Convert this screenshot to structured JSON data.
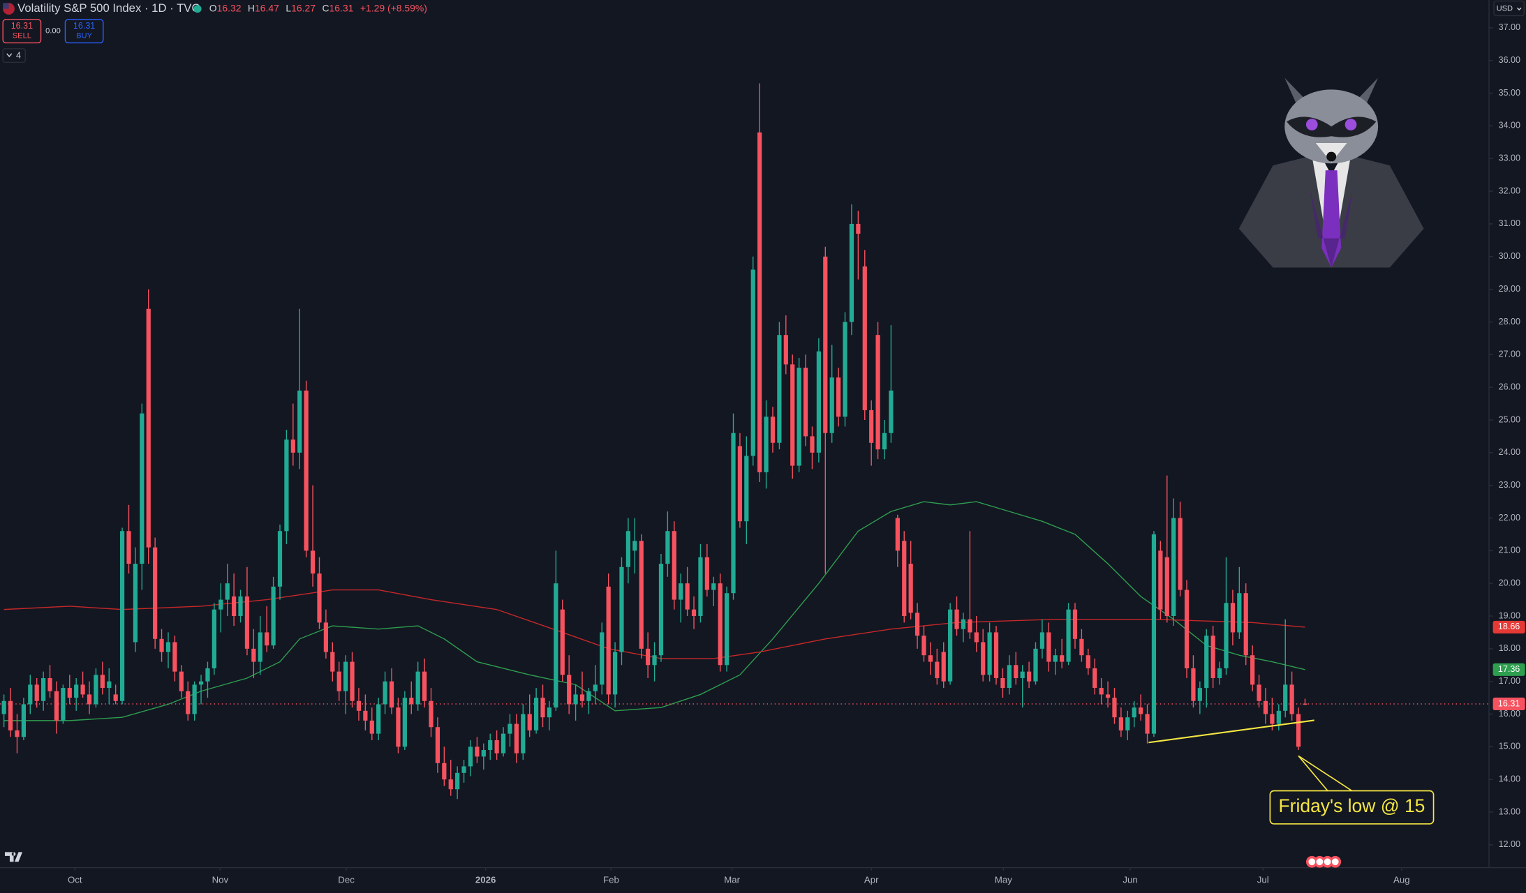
{
  "chart_data": {
    "type": "candlestick",
    "title": "Volatility S&P 500 Index · 1D · TVC",
    "header_ohlc": [
      {
        "key": "O",
        "value": 16.32
      },
      {
        "key": "H",
        "value": 16.47
      },
      {
        "key": "L",
        "value": 16.27
      },
      {
        "key": "C",
        "value": 16.31
      }
    ],
    "change": "+1.29 (+8.59%)",
    "sell": {
      "price": 16.31,
      "label": "SELL"
    },
    "spread": "0.00",
    "buy": {
      "price": 16.31,
      "label": "BUY"
    },
    "indicator_count": 4,
    "currency": "USD",
    "up_color": "#22ab94",
    "down_color": "#f7525f",
    "xlim": [
      -0.6,
      226
    ],
    "ylim": [
      11.3,
      37.85
    ],
    "grid": false,
    "xticks": [
      {
        "value": 10.8,
        "label": "Oct"
      },
      {
        "value": 32.9,
        "label": "Nov"
      },
      {
        "value": 52.1,
        "label": "Dec"
      },
      {
        "value": 73.3,
        "label": "2026"
      },
      {
        "value": 92.4,
        "label": "Feb"
      },
      {
        "value": 110.8,
        "label": "Mar"
      },
      {
        "value": 132,
        "label": "Apr"
      },
      {
        "value": 152.1,
        "label": "May"
      },
      {
        "value": 171.4,
        "label": "Jun"
      },
      {
        "value": 191.6,
        "label": "Jul"
      },
      {
        "value": 212.7,
        "label": "Aug"
      }
    ],
    "yticks": [
      {
        "value": 12,
        "label": "12.00"
      },
      {
        "value": 13,
        "label": "13.00"
      },
      {
        "value": 14,
        "label": "14.00"
      },
      {
        "value": 15,
        "label": "15.00"
      },
      {
        "value": 16,
        "label": "16.00"
      },
      {
        "value": 17,
        "label": "17.00"
      },
      {
        "value": 18,
        "label": "18.00"
      },
      {
        "value": 19,
        "label": "19.00"
      },
      {
        "value": 20,
        "label": "20.00"
      },
      {
        "value": 21,
        "label": "21.00"
      },
      {
        "value": 22,
        "label": "22.00"
      },
      {
        "value": 23,
        "label": "23.00"
      },
      {
        "value": 24,
        "label": "24.00"
      },
      {
        "value": 25,
        "label": "25.00"
      },
      {
        "value": 26,
        "label": "26.00"
      },
      {
        "value": 27,
        "label": "27.00"
      },
      {
        "value": 28,
        "label": "28.00"
      },
      {
        "value": 29,
        "label": "29.00"
      },
      {
        "value": 30,
        "label": "30.00"
      },
      {
        "value": 31,
        "label": "31.00"
      },
      {
        "value": 32,
        "label": "32.00"
      },
      {
        "value": 33,
        "label": "33.00"
      },
      {
        "value": 34,
        "label": "34.00"
      },
      {
        "value": 35,
        "label": "35.00"
      },
      {
        "value": 36,
        "label": "36.00"
      },
      {
        "value": 37,
        "label": "37.00"
      }
    ],
    "ohlc": [
      [
        16.0,
        16.6,
        15.6,
        16.4
      ],
      [
        16.4,
        16.8,
        15.3,
        15.5
      ],
      [
        15.5,
        16.0,
        14.8,
        15.3
      ],
      [
        15.3,
        16.5,
        15.2,
        16.3
      ],
      [
        16.3,
        17.2,
        16.0,
        16.9
      ],
      [
        16.9,
        17.1,
        16.2,
        16.4
      ],
      [
        16.4,
        17.3,
        16.1,
        17.1
      ],
      [
        17.1,
        17.5,
        16.5,
        16.7
      ],
      [
        16.7,
        17.0,
        15.4,
        15.8
      ],
      [
        15.8,
        16.9,
        15.7,
        16.8
      ],
      [
        16.8,
        17.2,
        16.3,
        16.5
      ],
      [
        16.5,
        17.1,
        16.1,
        16.9
      ],
      [
        16.9,
        17.3,
        16.5,
        16.6
      ],
      [
        16.6,
        17.0,
        16.0,
        16.3
      ],
      [
        16.3,
        17.4,
        16.2,
        17.2
      ],
      [
        17.2,
        17.6,
        16.6,
        16.8
      ],
      [
        16.8,
        17.4,
        16.3,
        17.0
      ],
      [
        16.6,
        16.9,
        16.3,
        16.4
      ],
      [
        16.4,
        21.7,
        16.3,
        21.6
      ],
      [
        21.6,
        22.4,
        20.3,
        20.6
      ],
      [
        18.2,
        21.1,
        17.9,
        20.6
      ],
      [
        20.6,
        25.5,
        19.8,
        25.2
      ],
      [
        28.4,
        29.0,
        20.6,
        21.1
      ],
      [
        21.1,
        21.4,
        18.0,
        18.3
      ],
      [
        18.3,
        18.6,
        17.6,
        17.9
      ],
      [
        17.9,
        18.5,
        17.4,
        18.2
      ],
      [
        18.2,
        18.4,
        17.0,
        17.3
      ],
      [
        17.3,
        17.5,
        16.5,
        16.7
      ],
      [
        16.7,
        17.0,
        15.8,
        16.0
      ],
      [
        16.0,
        17.0,
        15.8,
        16.9
      ],
      [
        16.9,
        17.2,
        16.3,
        17.0
      ],
      [
        17.0,
        17.6,
        16.5,
        17.4
      ],
      [
        17.4,
        19.4,
        17.2,
        19.2
      ],
      [
        19.2,
        20.0,
        18.5,
        19.5
      ],
      [
        19.5,
        20.6,
        19.0,
        20.0
      ],
      [
        19.6,
        20.3,
        18.7,
        19.0
      ],
      [
        19.0,
        19.8,
        18.8,
        19.6
      ],
      [
        19.6,
        20.5,
        17.8,
        18.0
      ],
      [
        18.0,
        18.6,
        17.1,
        17.6
      ],
      [
        17.6,
        19.0,
        17.2,
        18.5
      ],
      [
        18.5,
        19.3,
        17.9,
        18.1
      ],
      [
        18.1,
        20.2,
        18.0,
        19.9
      ],
      [
        19.9,
        21.8,
        19.5,
        21.6
      ],
      [
        21.6,
        24.7,
        21.2,
        24.4
      ],
      [
        24.4,
        25.5,
        23.6,
        24.0
      ],
      [
        24.0,
        28.4,
        23.5,
        25.9
      ],
      [
        25.9,
        26.2,
        20.8,
        21.0
      ],
      [
        21.0,
        23.0,
        19.9,
        20.3
      ],
      [
        20.3,
        20.8,
        18.6,
        18.8
      ],
      [
        18.8,
        19.2,
        17.7,
        17.9
      ],
      [
        17.9,
        18.2,
        17.0,
        17.3
      ],
      [
        17.3,
        17.6,
        16.4,
        16.7
      ],
      [
        16.7,
        17.8,
        16.0,
        17.6
      ],
      [
        17.6,
        17.9,
        16.2,
        16.4
      ],
      [
        16.4,
        16.8,
        15.8,
        16.1
      ],
      [
        16.1,
        16.6,
        15.5,
        15.8
      ],
      [
        15.8,
        16.2,
        15.2,
        15.4
      ],
      [
        15.4,
        16.5,
        15.2,
        16.3
      ],
      [
        16.3,
        17.3,
        16.0,
        17.0
      ],
      [
        17.0,
        17.4,
        16.0,
        16.2
      ],
      [
        16.2,
        16.5,
        14.8,
        15.0
      ],
      [
        15.0,
        16.7,
        14.9,
        16.5
      ],
      [
        16.5,
        17.0,
        16.0,
        16.3
      ],
      [
        16.3,
        17.6,
        16.1,
        17.3
      ],
      [
        17.3,
        17.7,
        16.2,
        16.4
      ],
      [
        16.4,
        16.8,
        15.3,
        15.6
      ],
      [
        15.6,
        15.9,
        14.2,
        14.5
      ],
      [
        14.5,
        15.0,
        13.8,
        14.0
      ],
      [
        14.0,
        14.6,
        13.5,
        13.7
      ],
      [
        13.7,
        14.4,
        13.4,
        14.2
      ],
      [
        14.2,
        14.6,
        13.9,
        14.4
      ],
      [
        14.4,
        15.2,
        14.1,
        15.0
      ],
      [
        15.0,
        15.3,
        14.5,
        14.7
      ],
      [
        14.7,
        15.1,
        14.3,
        14.9
      ],
      [
        14.9,
        15.4,
        14.6,
        15.2
      ],
      [
        15.2,
        15.5,
        14.6,
        14.8
      ],
      [
        14.8,
        15.6,
        14.7,
        15.4
      ],
      [
        15.4,
        16.0,
        15.0,
        15.7
      ],
      [
        15.7,
        16.0,
        14.5,
        14.8
      ],
      [
        14.8,
        16.3,
        14.6,
        16.0
      ],
      [
        16.0,
        16.6,
        15.3,
        15.5
      ],
      [
        15.5,
        16.8,
        15.4,
        16.5
      ],
      [
        16.5,
        16.9,
        15.6,
        15.9
      ],
      [
        15.9,
        16.4,
        15.5,
        16.2
      ],
      [
        16.2,
        21.0,
        16.1,
        20.0
      ],
      [
        19.2,
        19.5,
        17.0,
        17.2
      ],
      [
        17.2,
        17.8,
        16.0,
        16.3
      ],
      [
        16.3,
        16.9,
        15.8,
        16.6
      ],
      [
        16.6,
        17.3,
        16.2,
        16.4
      ],
      [
        16.4,
        16.8,
        16.0,
        16.7
      ],
      [
        16.7,
        17.5,
        16.3,
        16.9
      ],
      [
        16.9,
        18.8,
        16.6,
        18.5
      ],
      [
        19.9,
        20.3,
        16.3,
        16.6
      ],
      [
        16.6,
        18.2,
        16.2,
        17.9
      ],
      [
        17.9,
        20.8,
        17.5,
        20.5
      ],
      [
        20.5,
        22.0,
        20.0,
        21.6
      ],
      [
        21.0,
        22.0,
        20.3,
        21.3
      ],
      [
        21.3,
        21.5,
        17.7,
        18.0
      ],
      [
        18.0,
        18.5,
        17.1,
        17.5
      ],
      [
        17.5,
        18.2,
        17.0,
        17.8
      ],
      [
        17.8,
        20.9,
        17.6,
        20.6
      ],
      [
        20.6,
        22.2,
        20.2,
        21.6
      ],
      [
        21.6,
        21.9,
        19.2,
        19.5
      ],
      [
        19.5,
        20.3,
        18.8,
        20.0
      ],
      [
        20.0,
        20.5,
        19.0,
        19.2
      ],
      [
        19.2,
        19.6,
        18.6,
        19.0
      ],
      [
        19.0,
        21.2,
        18.8,
        20.8
      ],
      [
        20.8,
        21.2,
        19.6,
        19.8
      ],
      [
        19.8,
        20.2,
        19.3,
        20.0
      ],
      [
        20.0,
        20.3,
        17.3,
        17.5
      ],
      [
        17.5,
        19.9,
        17.3,
        19.7
      ],
      [
        19.7,
        25.2,
        19.5,
        24.6
      ],
      [
        24.2,
        24.6,
        21.7,
        21.9
      ],
      [
        21.9,
        24.5,
        21.2,
        23.9
      ],
      [
        23.9,
        30.0,
        23.6,
        29.6
      ],
      [
        33.8,
        35.3,
        23.1,
        23.4
      ],
      [
        23.4,
        25.6,
        22.9,
        25.1
      ],
      [
        25.1,
        25.4,
        24.0,
        24.3
      ],
      [
        24.3,
        28.0,
        24.1,
        27.6
      ],
      [
        27.6,
        28.2,
        26.4,
        26.7
      ],
      [
        26.7,
        27.0,
        23.2,
        23.6
      ],
      [
        23.6,
        26.9,
        23.4,
        26.6
      ],
      [
        26.6,
        27.0,
        24.2,
        24.5
      ],
      [
        24.5,
        24.8,
        23.5,
        24.0
      ],
      [
        24.0,
        27.5,
        23.7,
        27.1
      ],
      [
        30.0,
        30.3,
        20.3,
        24.6
      ],
      [
        24.6,
        27.3,
        24.3,
        26.3
      ],
      [
        26.3,
        26.6,
        24.8,
        25.1
      ],
      [
        25.1,
        28.3,
        24.8,
        28.0
      ],
      [
        28.0,
        31.6,
        27.6,
        31.0
      ],
      [
        31.0,
        31.4,
        29.3,
        30.7
      ],
      [
        29.7,
        30.2,
        25.0,
        25.3
      ],
      [
        25.3,
        25.6,
        23.6,
        24.3
      ],
      [
        27.6,
        28.0,
        23.8,
        24.1
      ],
      [
        24.1,
        25.0,
        23.8,
        24.6
      ],
      [
        24.6,
        27.9,
        24.3,
        25.9
      ],
      [
        22.0,
        22.1,
        20.5,
        21.0
      ],
      [
        21.3,
        21.6,
        18.8,
        19.0
      ],
      [
        20.6,
        21.3,
        18.9,
        19.1
      ],
      [
        19.1,
        19.4,
        18.0,
        18.4
      ],
      [
        18.4,
        18.7,
        17.6,
        17.8
      ],
      [
        17.8,
        18.2,
        17.2,
        17.6
      ],
      [
        17.6,
        18.0,
        16.9,
        17.1
      ],
      [
        17.9,
        18.2,
        16.8,
        17.0
      ],
      [
        17.0,
        19.4,
        16.9,
        19.2
      ],
      [
        19.2,
        19.6,
        18.4,
        18.6
      ],
      [
        18.6,
        19.1,
        18.2,
        18.9
      ],
      [
        18.9,
        21.6,
        18.3,
        18.5
      ],
      [
        18.5,
        19.0,
        17.9,
        18.2
      ],
      [
        18.2,
        18.6,
        17.0,
        17.2
      ],
      [
        17.2,
        18.8,
        17.0,
        18.5
      ],
      [
        18.5,
        18.7,
        16.9,
        17.1
      ],
      [
        17.1,
        17.4,
        16.5,
        16.8
      ],
      [
        16.8,
        17.8,
        16.6,
        17.5
      ],
      [
        17.5,
        17.9,
        16.9,
        17.1
      ],
      [
        17.1,
        17.5,
        16.2,
        17.3
      ],
      [
        17.3,
        17.6,
        16.8,
        17.0
      ],
      [
        17.0,
        18.2,
        16.9,
        18.0
      ],
      [
        18.0,
        18.9,
        17.7,
        18.5
      ],
      [
        18.5,
        18.8,
        17.3,
        17.6
      ],
      [
        17.6,
        18.0,
        17.2,
        17.8
      ],
      [
        17.8,
        18.3,
        17.4,
        17.6
      ],
      [
        17.6,
        19.4,
        17.5,
        19.2
      ],
      [
        19.2,
        19.4,
        18.0,
        18.3
      ],
      [
        18.3,
        18.6,
        17.6,
        17.8
      ],
      [
        17.8,
        18.0,
        17.2,
        17.4
      ],
      [
        17.4,
        17.7,
        16.6,
        16.8
      ],
      [
        16.8,
        17.1,
        16.3,
        16.6
      ],
      [
        16.6,
        17.0,
        16.2,
        16.5
      ],
      [
        16.5,
        16.8,
        15.7,
        15.9
      ],
      [
        15.9,
        16.2,
        15.3,
        15.5
      ],
      [
        15.5,
        16.1,
        15.2,
        15.9
      ],
      [
        15.9,
        16.4,
        15.6,
        16.2
      ],
      [
        16.2,
        16.6,
        15.8,
        16.0
      ],
      [
        16.0,
        16.3,
        15.1,
        15.4
      ],
      [
        15.4,
        21.6,
        15.3,
        21.5
      ],
      [
        21.0,
        21.3,
        18.9,
        19.2
      ],
      [
        20.8,
        23.3,
        18.8,
        19.0
      ],
      [
        19.0,
        22.6,
        18.7,
        22.0
      ],
      [
        22.0,
        22.5,
        19.6,
        19.8
      ],
      [
        19.8,
        20.1,
        17.1,
        17.4
      ],
      [
        17.4,
        17.8,
        16.2,
        16.4
      ],
      [
        16.4,
        17.0,
        16.0,
        16.8
      ],
      [
        16.8,
        18.6,
        16.2,
        18.4
      ],
      [
        18.4,
        18.7,
        16.8,
        17.1
      ],
      [
        17.1,
        17.6,
        16.9,
        17.4
      ],
      [
        17.4,
        20.8,
        17.2,
        19.4
      ],
      [
        19.4,
        19.8,
        18.1,
        18.5
      ],
      [
        18.5,
        20.5,
        18.3,
        19.7
      ],
      [
        19.7,
        20.0,
        17.5,
        17.8
      ],
      [
        17.8,
        18.1,
        16.7,
        16.9
      ],
      [
        16.9,
        17.2,
        16.2,
        16.4
      ],
      [
        16.4,
        16.8,
        15.7,
        16.0
      ],
      [
        16.0,
        16.5,
        15.5,
        15.7
      ],
      [
        15.7,
        16.3,
        15.5,
        16.1
      ],
      [
        16.1,
        18.9,
        15.9,
        16.9
      ],
      [
        16.9,
        17.3,
        15.8,
        16.0
      ],
      [
        16.0,
        16.2,
        14.9,
        15.0
      ],
      [
        16.32,
        16.47,
        16.27,
        16.31
      ]
    ],
    "lines": [
      {
        "color": "#2e9e4f",
        "x": [
          0,
          10,
          18,
          25,
          30,
          37,
          42,
          45,
          50,
          57,
          63,
          67,
          72,
          80,
          87,
          93,
          100,
          106,
          112,
          117,
          124,
          130,
          135,
          140,
          144,
          148,
          153,
          158,
          163,
          168,
          173,
          178,
          183,
          188,
          193,
          198
        ],
        "values": [
          15.8,
          15.8,
          15.9,
          16.3,
          16.7,
          17.1,
          17.6,
          18.3,
          18.7,
          18.6,
          18.7,
          18.3,
          17.6,
          17.2,
          16.9,
          16.1,
          16.2,
          16.6,
          17.2,
          18.3,
          20.0,
          21.6,
          22.2,
          22.5,
          22.4,
          22.5,
          22.2,
          21.9,
          21.5,
          20.6,
          19.6,
          18.9,
          18.1,
          17.8,
          17.6,
          17.36
        ]
      },
      {
        "color": "#c62828",
        "x": [
          0,
          10,
          18,
          30,
          40,
          50,
          57,
          65,
          75,
          85,
          92,
          100,
          108,
          115,
          125,
          135,
          145,
          160,
          175,
          190,
          198
        ],
        "values": [
          19.2,
          19.3,
          19.2,
          19.3,
          19.5,
          19.8,
          19.8,
          19.5,
          19.2,
          18.5,
          18.0,
          17.7,
          17.7,
          17.9,
          18.3,
          18.6,
          18.8,
          18.9,
          18.9,
          18.8,
          18.66
        ]
      }
    ],
    "price_tags": [
      {
        "value": 18.66,
        "color": "#e53935"
      },
      {
        "value": 17.36,
        "color": "#2e9e4f"
      },
      {
        "value": 16.31,
        "color": "#f7525f"
      }
    ],
    "trendline": {
      "color": "#f5e642",
      "x": [
        174.2,
        199.4
      ],
      "y": [
        15.13,
        15.81
      ]
    },
    "annotation": {
      "text": "Friday's low @ 15",
      "x": 197,
      "y": 14.9
    }
  }
}
